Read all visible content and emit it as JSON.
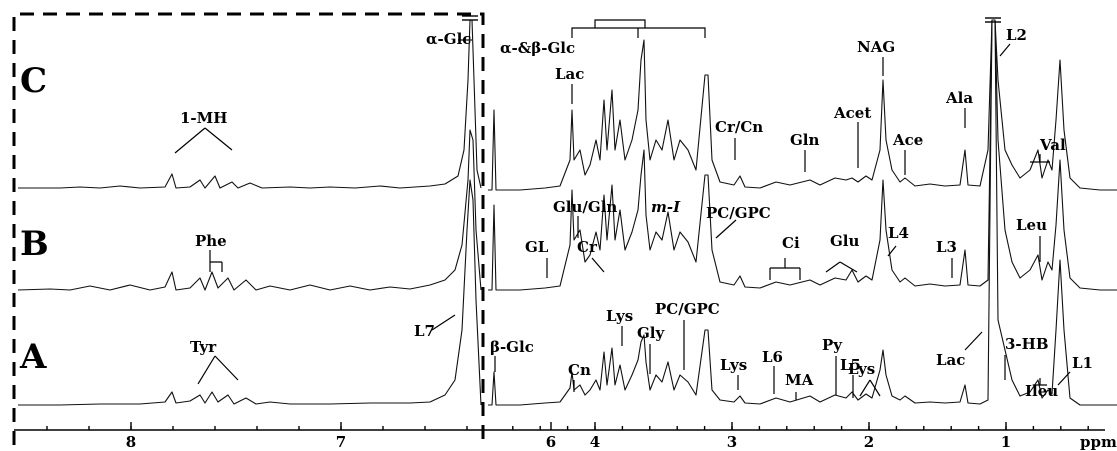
{
  "chart_data": {
    "type": "line",
    "xlabel": "ppm",
    "xlim": [
      0.2,
      9.0
    ],
    "x_reversed": true,
    "ticks": [
      {
        "value": 8,
        "label": "8"
      },
      {
        "value": 7,
        "label": "7"
      },
      {
        "value": 6,
        "label": "6"
      },
      {
        "value": 4,
        "label": "4"
      },
      {
        "value": 3,
        "label": "3"
      },
      {
        "value": 2,
        "label": "2"
      },
      {
        "value": 1,
        "label": "1"
      }
    ],
    "series": [
      {
        "name": "C",
        "label": "C"
      },
      {
        "name": "B",
        "label": "B"
      },
      {
        "name": "A",
        "label": "A"
      }
    ],
    "annotations": [
      {
        "text": "α-Glc",
        "ppm": 5.23,
        "spectrum": "C"
      },
      {
        "text": "1-MH",
        "ppm": 7.4,
        "spectrum": "C"
      },
      {
        "text": "Phe",
        "ppm": 7.38,
        "spectrum": "B"
      },
      {
        "text": "Tyr",
        "ppm": 7.05,
        "spectrum": "A"
      },
      {
        "text": "L7",
        "ppm": 5.3,
        "spectrum": "A"
      },
      {
        "text": "α-&β-Glc",
        "ppm": 3.6,
        "spectrum": "C"
      },
      {
        "text": "Lac",
        "ppm": 4.11,
        "spectrum": "C"
      },
      {
        "text": "Cr/Cn",
        "ppm": 3.03,
        "spectrum": "C"
      },
      {
        "text": "NAG",
        "ppm": 2.03,
        "spectrum": "C"
      },
      {
        "text": "Acet",
        "ppm": 2.23,
        "spectrum": "C"
      },
      {
        "text": "Gln",
        "ppm": 2.45,
        "spectrum": "C"
      },
      {
        "text": "Ace",
        "ppm": 1.92,
        "spectrum": "C"
      },
      {
        "text": "Ala",
        "ppm": 1.48,
        "spectrum": "C"
      },
      {
        "text": "L2",
        "ppm": 1.26,
        "spectrum": "C"
      },
      {
        "text": "Val",
        "ppm": 1.03,
        "spectrum": "C"
      },
      {
        "text": "Glu/Gln",
        "ppm": 3.77,
        "spectrum": "B"
      },
      {
        "text": "m-I",
        "ppm": 3.62,
        "spectrum": "B"
      },
      {
        "text": "PC/GPC",
        "ppm": 3.22,
        "spectrum": "B"
      },
      {
        "text": "GL",
        "ppm": 4.3,
        "spectrum": "B"
      },
      {
        "text": "Cr",
        "ppm": 3.93,
        "spectrum": "B"
      },
      {
        "text": "Ci",
        "ppm": 2.65,
        "spectrum": "B"
      },
      {
        "text": "Glu",
        "ppm": 2.35,
        "spectrum": "B"
      },
      {
        "text": "L4",
        "ppm": 2.01,
        "spectrum": "B"
      },
      {
        "text": "L3",
        "ppm": 1.58,
        "spectrum": "B"
      },
      {
        "text": "Leu",
        "ppm": 0.96,
        "spectrum": "B"
      },
      {
        "text": "β-Glc",
        "ppm": 4.65,
        "spectrum": "A"
      },
      {
        "text": "Lys",
        "ppm": 3.75,
        "spectrum": "A"
      },
      {
        "text": "Gly",
        "ppm": 3.56,
        "spectrum": "A"
      },
      {
        "text": "PC/GPC",
        "ppm": 3.22,
        "spectrum": "A"
      },
      {
        "text": "Cn",
        "ppm": 4.06,
        "spectrum": "A"
      },
      {
        "text": "Lys",
        "ppm": 3.02,
        "spectrum": "A"
      },
      {
        "text": "L6",
        "ppm": 2.76,
        "spectrum": "A"
      },
      {
        "text": "MA",
        "ppm": 2.64,
        "spectrum": "A"
      },
      {
        "text": "Py",
        "ppm": 2.36,
        "spectrum": "A"
      },
      {
        "text": "L5",
        "ppm": 2.24,
        "spectrum": "A"
      },
      {
        "text": "Lys",
        "ppm": 1.72,
        "spectrum": "A"
      },
      {
        "text": "Lac",
        "ppm": 1.33,
        "spectrum": "A"
      },
      {
        "text": "3-HB",
        "ppm": 1.2,
        "spectrum": "A"
      },
      {
        "text": "Ileu",
        "ppm": 0.99,
        "spectrum": "A"
      },
      {
        "text": "L1",
        "ppm": 0.88,
        "spectrum": "A"
      }
    ]
  }
}
